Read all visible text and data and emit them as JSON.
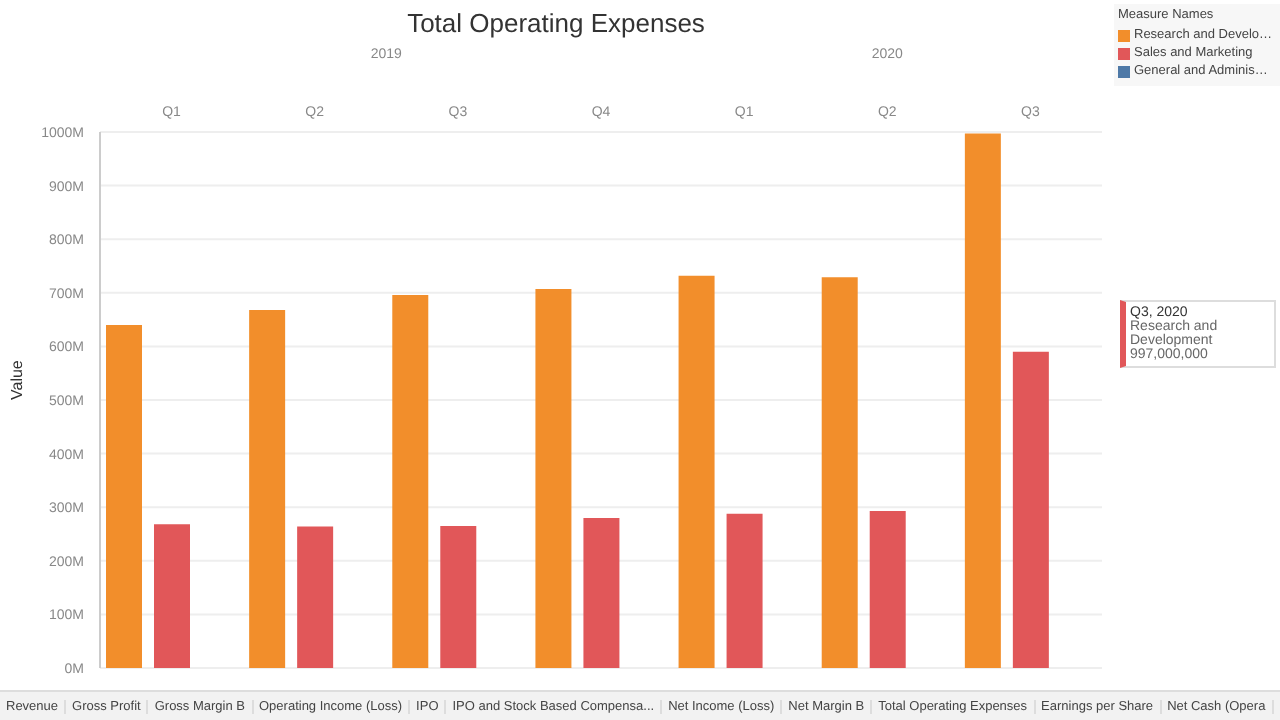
{
  "chart_data": {
    "type": "bar",
    "title": "Total Operating Expenses",
    "ylabel": "Value",
    "legend_title": "Measure Names",
    "categories": [
      "Q1",
      "Q2",
      "Q3",
      "Q4",
      "Q1",
      "Q2",
      "Q3"
    ],
    "series": [
      {
        "name": "Research and Develo…",
        "color": "#f28e2b",
        "values": [
          640,
          668,
          696,
          707,
          732,
          729,
          997
        ]
      },
      {
        "name": "Sales and Marketing",
        "color": "#e15759",
        "values": [
          268,
          264,
          265,
          280,
          288,
          293,
          590
        ]
      },
      {
        "name": "General and Adminis…",
        "color": "#4e79a7",
        "values": [
          null,
          null,
          null,
          null,
          null,
          null,
          null
        ]
      }
    ],
    "ylim": [
      0,
      1000
    ],
    "yticks": [
      {
        "value": 0,
        "label": "0M"
      },
      {
        "value": 100,
        "label": "100M"
      },
      {
        "value": 200,
        "label": "200M"
      },
      {
        "value": 300,
        "label": "300M"
      },
      {
        "value": 400,
        "label": "400M"
      },
      {
        "value": 500,
        "label": "500M"
      },
      {
        "value": 600,
        "label": "600M"
      },
      {
        "value": 700,
        "label": "700M"
      },
      {
        "value": 800,
        "label": "800M"
      },
      {
        "value": 900,
        "label": "900M"
      },
      {
        "value": 1000,
        "label": "1000M"
      }
    ],
    "grid": "y",
    "legend": "right",
    "annotations": [
      "2019",
      "2020",
      "Q3, 2020",
      "Research and Development 997,000,000",
      "Revenue",
      "Gross Profit",
      "Gross Margin B",
      "Operating Income (Loss)",
      "IPO",
      "IPO and Stock Based Compensa...",
      "Net Income (Loss)",
      "Net Margin B",
      "Total Operating Expenses",
      "Earnings per Share",
      "Net Cash (Opera"
    ]
  }
}
